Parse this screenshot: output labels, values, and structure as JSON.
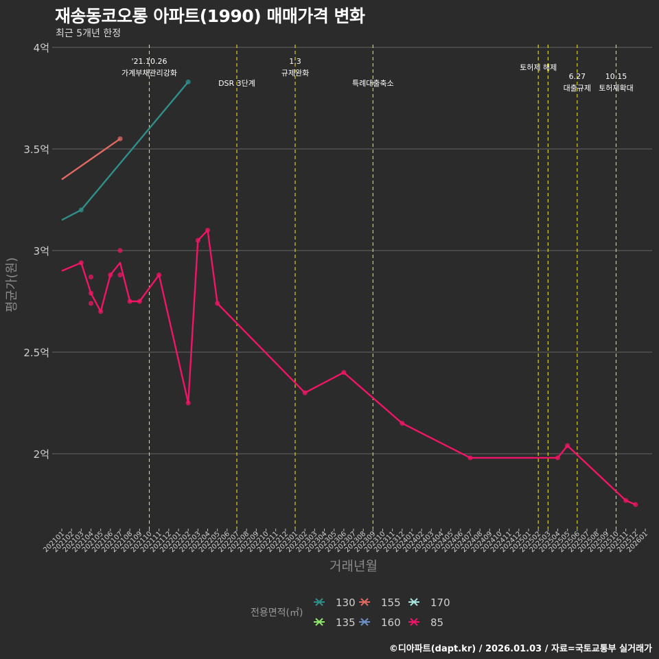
{
  "chart_data": {
    "type": "line",
    "title": "재송동코오롱 아파트(1990) 매매가격 변화",
    "subtitle": "최근 5개년 한정",
    "xlabel": "거래년월",
    "ylabel": "평균가(원)",
    "caption": "©디아파트(dapt.kr) / 2026.01.03 / 자료=국토교통부 실거래가",
    "ylim": [
      1.65,
      4.0
    ],
    "y_ticks": [
      2.0,
      2.5,
      3.0,
      3.5,
      4.0
    ],
    "y_tick_labels": [
      "2억",
      "2.5억",
      "3억",
      "3.5억",
      "4억"
    ],
    "x_ticks": [
      "202101",
      "202102",
      "202103",
      "202104",
      "202105",
      "202106",
      "202107",
      "202108",
      "202109",
      "202110",
      "202111",
      "202112",
      "202201",
      "202202",
      "202203",
      "202204",
      "202205",
      "202206",
      "202207",
      "202208",
      "202209",
      "202210",
      "202211",
      "202212",
      "202301",
      "202302",
      "202303",
      "202304",
      "202305",
      "202306",
      "202307",
      "202308",
      "202309",
      "202310",
      "202311",
      "202312",
      "202401",
      "202402",
      "202403",
      "202404",
      "202405",
      "202406",
      "202407",
      "202408",
      "202409",
      "202410",
      "202411",
      "202412",
      "202501",
      "202502",
      "202503",
      "202504",
      "202505",
      "202506",
      "202507",
      "202508",
      "202509",
      "202510",
      "202511",
      "202512",
      "202601"
    ],
    "legend_title": "전용면적(㎡)",
    "legend": [
      {
        "label": "130",
        "color": "#2f8f8a"
      },
      {
        "label": "155",
        "color": "#e06a61"
      },
      {
        "label": "170",
        "color": "#a8e6e0"
      },
      {
        "label": "135",
        "color": "#8ee86b"
      },
      {
        "label": "160",
        "color": "#6d8fc8"
      },
      {
        "label": "85",
        "color": "#f01566"
      }
    ],
    "events": [
      {
        "x": "202110",
        "lines": [
          "'21.10.26",
          "가계부채관리강화"
        ],
        "row": 0
      },
      {
        "x": "202207",
        "lines": [
          "DSR 3단계"
        ],
        "row": 2
      },
      {
        "x": "202301",
        "lines": [
          "1.3",
          "규제완화"
        ],
        "row": 0
      },
      {
        "x": "202309",
        "lines": [
          "특례대출축소"
        ],
        "row": 2
      },
      {
        "x": "202502",
        "lines": [
          "토허제 해제"
        ],
        "row": 1
      },
      {
        "x": "202503",
        "lines": [],
        "row": 1
      },
      {
        "x": "202506",
        "lines": [
          "6.27",
          "대출규제"
        ],
        "row": 3
      },
      {
        "x": "202510",
        "lines": [
          "10.15",
          "토허제확대"
        ],
        "row": 3
      }
    ],
    "series": [
      {
        "name": "130",
        "color": "#2f8f8a",
        "line": [
          [
            "202101",
            3.15
          ],
          [
            "202103",
            3.2
          ],
          [
            "202202",
            3.83
          ]
        ],
        "points": [
          [
            "202103",
            3.2
          ],
          [
            "202202",
            3.83
          ]
        ]
      },
      {
        "name": "155",
        "color": "#e06a61",
        "line": [
          [
            "202101",
            3.35
          ],
          [
            "202107",
            3.55
          ]
        ],
        "points": [
          [
            "202107",
            3.55
          ]
        ]
      },
      {
        "name": "85",
        "color": "#f01566",
        "line": [
          [
            "202101",
            2.9
          ],
          [
            "202103",
            2.94
          ],
          [
            "202104",
            2.79
          ],
          [
            "202105",
            2.7
          ],
          [
            "202106",
            2.88
          ],
          [
            "202107",
            2.94
          ],
          [
            "202108",
            2.75
          ],
          [
            "202109",
            2.75
          ],
          [
            "202111",
            2.88
          ],
          [
            "202202",
            2.25
          ],
          [
            "202203",
            3.05
          ],
          [
            "202204",
            3.1
          ],
          [
            "202205",
            2.74
          ],
          [
            "202302",
            2.3
          ],
          [
            "202306",
            2.4
          ],
          [
            "202312",
            2.15
          ],
          [
            "202407",
            1.98
          ],
          [
            "202504",
            1.98
          ],
          [
            "202505",
            2.04
          ],
          [
            "202511",
            1.77
          ],
          [
            "202512",
            1.75
          ]
        ],
        "points": [
          [
            "202103",
            2.94
          ],
          [
            "202104",
            2.87
          ],
          [
            "202104",
            2.79
          ],
          [
            "202104",
            2.74
          ],
          [
            "202105",
            2.7
          ],
          [
            "202106",
            2.88
          ],
          [
            "202107",
            3.0
          ],
          [
            "202107",
            2.88
          ],
          [
            "202108",
            2.75
          ],
          [
            "202109",
            2.75
          ],
          [
            "202111",
            2.88
          ],
          [
            "202202",
            2.25
          ],
          [
            "202203",
            3.05
          ],
          [
            "202204",
            3.1
          ],
          [
            "202205",
            2.74
          ],
          [
            "202302",
            2.3
          ],
          [
            "202306",
            2.4
          ],
          [
            "202312",
            2.15
          ],
          [
            "202407",
            1.98
          ],
          [
            "202504",
            1.98
          ],
          [
            "202505",
            2.04
          ],
          [
            "202511",
            1.77
          ],
          [
            "202512",
            1.75
          ]
        ]
      }
    ]
  }
}
